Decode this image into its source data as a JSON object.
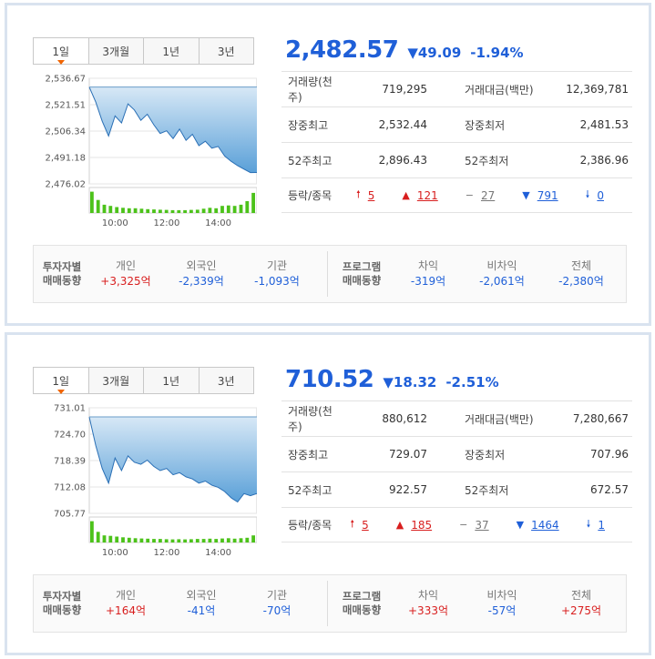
{
  "tabs": [
    "1일",
    "3개월",
    "1년",
    "3년"
  ],
  "labels": {
    "volume": "거래량(천주)",
    "value": "거래대금(백만)",
    "day_high": "장중최고",
    "day_low": "장중최저",
    "w52_high": "52주최고",
    "w52_low": "52주최저",
    "breadth": "등락/종목",
    "investor": [
      "투자자별",
      "매매동향"
    ],
    "program": [
      "프로그램",
      "매매동향"
    ],
    "individual": "개인",
    "foreign": "외국인",
    "institution": "기관",
    "arbitrage": "차익",
    "non_arbitrage": "비차익",
    "total": "전체"
  },
  "icons": {
    "upper_limit": "arrow-up-limit-icon",
    "rise": "triangle-up-icon",
    "flat": "dash-icon",
    "fall": "triangle-down-icon",
    "lower_limit": "arrow-down-limit-icon"
  },
  "colors": {
    "up": "#d81e1e",
    "down": "#1f5fd8",
    "area_top": "#d7e8f6",
    "area_bottom": "#5aa0d8",
    "volume_bar": "#4cc21a"
  },
  "panels": [
    {
      "price": "2,482.57",
      "change": "▼49.09",
      "change_pct": "-1.94%",
      "volume": "719,295",
      "value": "12,369,781",
      "day_high": "2,532.44",
      "day_low": "2,481.53",
      "w52_high": "2,896.43",
      "w52_low": "2,386.96",
      "breadth": {
        "upper_limit": "5",
        "rise": "121",
        "flat": "27",
        "fall": "791",
        "lower_limit": "0"
      },
      "investor": {
        "individual": "+3,325억",
        "foreign": "-2,339억",
        "institution": "-1,093억"
      },
      "program": {
        "arbitrage": "-319억",
        "non_arbitrage": "-2,061억",
        "total": "-2,380억"
      },
      "chart_data": {
        "type": "area",
        "y_ticks": [
          "2,536.67",
          "2,521.51",
          "2,506.34",
          "2,491.18",
          "2,476.02"
        ],
        "ylim": [
          2476.02,
          2536.67
        ],
        "x_ticks": [
          "10:00",
          "12:00",
          "14:00"
        ],
        "x": [
          "09:00",
          "09:15",
          "09:30",
          "09:45",
          "10:00",
          "10:15",
          "10:30",
          "10:45",
          "11:00",
          "11:15",
          "11:30",
          "11:45",
          "12:00",
          "12:15",
          "12:30",
          "12:45",
          "13:00",
          "13:15",
          "13:30",
          "13:45",
          "14:00",
          "14:15",
          "14:30",
          "14:45",
          "15:00",
          "15:15",
          "15:30"
        ],
        "values": [
          2531.6,
          2523.0,
          2512.0,
          2503.5,
          2515.0,
          2511.0,
          2522.0,
          2518.5,
          2512.5,
          2516.0,
          2510.0,
          2505.0,
          2506.5,
          2502.0,
          2507.5,
          2501.0,
          2504.5,
          2498.0,
          2500.5,
          2496.5,
          2497.5,
          2492.0,
          2489.0,
          2486.5,
          2484.5,
          2482.5,
          2482.57
        ],
        "prev_close": 2531.66,
        "volume": [
          0.9,
          0.55,
          0.35,
          0.3,
          0.25,
          0.22,
          0.2,
          0.2,
          0.18,
          0.16,
          0.15,
          0.14,
          0.13,
          0.12,
          0.12,
          0.12,
          0.13,
          0.14,
          0.18,
          0.22,
          0.2,
          0.3,
          0.32,
          0.3,
          0.35,
          0.5,
          0.85
        ]
      }
    },
    {
      "price": "710.52",
      "change": "▼18.32",
      "change_pct": "-2.51%",
      "volume": "880,612",
      "value": "7,280,667",
      "day_high": "729.07",
      "day_low": "707.96",
      "w52_high": "922.57",
      "w52_low": "672.57",
      "breadth": {
        "upper_limit": "5",
        "rise": "185",
        "flat": "37",
        "fall": "1464",
        "lower_limit": "1"
      },
      "investor": {
        "individual": "+164억",
        "foreign": "-41억",
        "institution": "-70억"
      },
      "program": {
        "arbitrage": "+333억",
        "non_arbitrage": "-57억",
        "total": "+275억"
      },
      "chart_data": {
        "type": "area",
        "y_ticks": [
          "731.01",
          "724.70",
          "718.39",
          "712.08",
          "705.77"
        ],
        "ylim": [
          705.77,
          731.01
        ],
        "x_ticks": [
          "10:00",
          "12:00",
          "14:00"
        ],
        "x": [
          "09:00",
          "09:15",
          "09:30",
          "09:45",
          "10:00",
          "10:15",
          "10:30",
          "10:45",
          "11:00",
          "11:15",
          "11:30",
          "11:45",
          "12:00",
          "12:15",
          "12:30",
          "12:45",
          "13:00",
          "13:15",
          "13:30",
          "13:45",
          "14:00",
          "14:15",
          "14:30",
          "14:45",
          "15:00",
          "15:15",
          "15:30"
        ],
        "values": [
          728.8,
          722.0,
          716.5,
          713.0,
          719.0,
          716.0,
          719.5,
          718.0,
          717.5,
          718.5,
          717.0,
          716.0,
          716.5,
          715.0,
          715.5,
          714.5,
          714.0,
          713.0,
          713.5,
          712.5,
          712.0,
          711.0,
          709.5,
          708.5,
          710.5,
          710.0,
          710.52
        ],
        "prev_close": 728.84,
        "volume": [
          0.9,
          0.45,
          0.3,
          0.28,
          0.25,
          0.22,
          0.2,
          0.18,
          0.17,
          0.16,
          0.15,
          0.15,
          0.14,
          0.13,
          0.14,
          0.13,
          0.14,
          0.15,
          0.15,
          0.16,
          0.15,
          0.17,
          0.18,
          0.16,
          0.18,
          0.2,
          0.3
        ]
      }
    }
  ]
}
